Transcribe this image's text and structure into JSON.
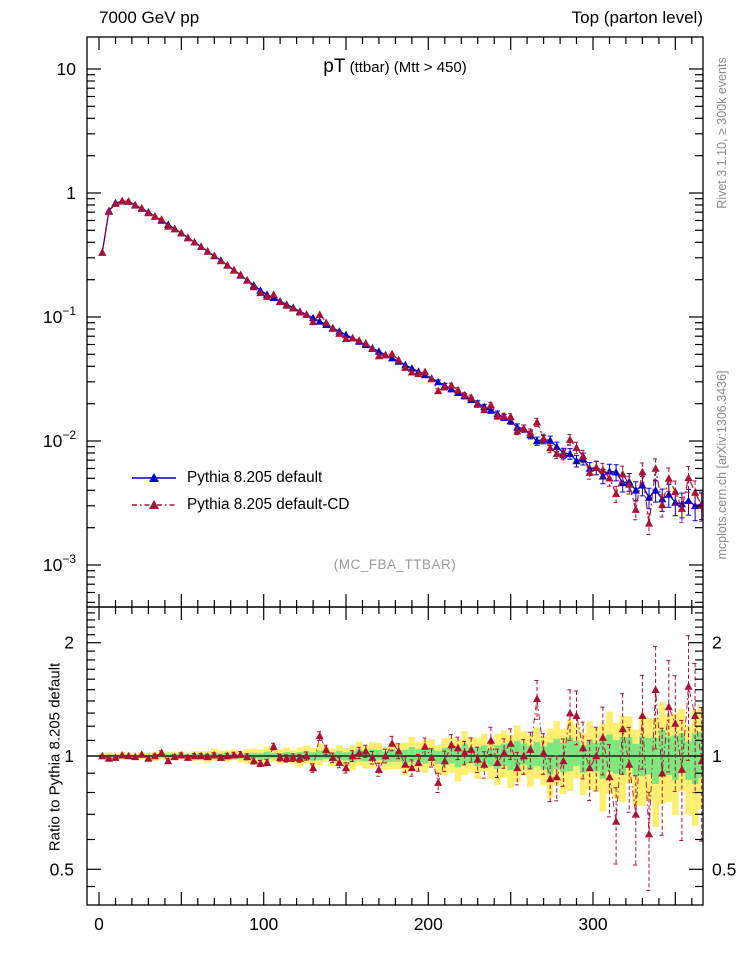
{
  "header": {
    "left": "7000 GeV pp",
    "right": "Top (parton level)"
  },
  "side_notes": {
    "top": "Rivet 3.1.10, ≥ 300k events",
    "bottom": "mcplots.cern.ch [arXiv:1306.3436]"
  },
  "watermark": "(MC_FBA_TTBAR)",
  "legend": {
    "items": [
      {
        "label": "Pythia 8.205 default",
        "color": "#0000cc",
        "style": "solid"
      },
      {
        "label": "Pythia 8.205 default-CD",
        "color": "#aa1133",
        "style": "dashdot"
      }
    ]
  },
  "chart_data": {
    "type": "line",
    "title": "pT (ttbar) (Mtt > 450)",
    "title_big": "pT",
    "title_rest": " (ttbar) (Mtt > 450)",
    "ratio_ylabel": "Ratio to Pythia 8.205 default",
    "x_axis": {
      "lim": [
        -7,
        367
      ],
      "major_step": 50,
      "minor_step": 10,
      "labeled_ticks": [
        0,
        100,
        200,
        300
      ]
    },
    "main_y_axis": {
      "scale": "log",
      "lim": [
        0.00046,
        18.1
      ],
      "labeled_ticks": [
        {
          "v": 10,
          "mantissa": "10",
          "exp": ""
        },
        {
          "v": 1,
          "mantissa": "1",
          "exp": ""
        },
        {
          "v": 0.1,
          "mantissa": "10",
          "exp": "-1"
        },
        {
          "v": 0.01,
          "mantissa": "10",
          "exp": "-2"
        },
        {
          "v": 0.001,
          "mantissa": "10",
          "exp": "-3"
        }
      ]
    },
    "ratio_y_axis": {
      "scale": "log",
      "lim": [
        0.4,
        2.49
      ],
      "labeled_ticks": [
        2,
        1,
        0.5
      ]
    },
    "x_start": 2,
    "x_step": 4,
    "series": [
      {
        "name": "Pythia 8.205 default",
        "color": "#0000cc",
        "style": "solid",
        "marker": "triangle",
        "values": [
          0.331,
          0.719,
          0.83,
          0.859,
          0.855,
          0.8,
          0.748,
          0.7,
          0.647,
          0.6,
          0.555,
          0.514,
          0.475,
          0.437,
          0.401,
          0.369,
          0.339,
          0.311,
          0.286,
          0.261,
          0.238,
          0.217,
          0.198,
          0.18,
          0.164,
          0.152,
          0.143,
          0.134,
          0.126,
          0.119,
          0.111,
          0.105,
          0.0983,
          0.0923,
          0.0867,
          0.0815,
          0.0766,
          0.0719,
          0.0676,
          0.0635,
          0.0597,
          0.0561,
          0.0527,
          0.0495,
          0.0466,
          0.0438,
          0.0411,
          0.0386,
          0.0363,
          0.0341,
          0.032,
          0.0299,
          0.028,
          0.0262,
          0.0245,
          0.023,
          0.0215,
          0.0201,
          0.0188,
          0.0177,
          0.0165,
          0.0155,
          0.0145,
          0.0129,
          0.0126,
          0.0112,
          0.01,
          0.0103,
          0.0101,
          0.009,
          0.008,
          0.0079,
          0.0069,
          0.0072,
          0.006,
          0.0061,
          0.0052,
          0.0057,
          0.0056,
          0.0046,
          0.0047,
          0.004,
          0.0044,
          0.0035,
          0.004,
          0.0034,
          0.0037,
          0.0032,
          0.0031,
          0.0033,
          0.003,
          0.0031
        ]
      },
      {
        "name": "Pythia 8.205 default-CD",
        "color": "#aa1133",
        "style": "dashdot",
        "marker": "triangle",
        "ratio_to_first": [
          1.0,
          0.985,
          0.99,
          1.005,
          1.0,
          0.995,
          1.01,
          0.985,
          1.0,
          1.02,
          0.97,
          0.995,
          1.005,
          0.99,
          1.0,
          1.0,
          0.995,
          1.005,
          0.99,
          1.0,
          1.005,
          1.01,
          0.995,
          0.97,
          0.955,
          0.96,
          1.06,
          0.99,
          0.985,
          0.99,
          0.985,
          1.0,
          0.93,
          1.13,
          1.04,
          0.99,
          0.96,
          0.93,
          1.0,
          1.02,
          1.03,
          0.99,
          0.92,
          1.0,
          1.08,
          1.03,
          0.95,
          0.93,
          0.96,
          1.06,
          0.99,
          0.85,
          0.97,
          1.07,
          1.05,
          1.02,
          1.04,
          0.98,
          0.95,
          1.1,
          0.96,
          1.02,
          1.08,
          0.93,
          1.0,
          1.04,
          1.42,
          1.02,
          0.87,
          0.88,
          0.97,
          1.3,
          1.28,
          1.05,
          0.93,
          1.0,
          1.12,
          0.88,
          0.67,
          1.18,
          0.95,
          0.7,
          1.28,
          0.62,
          1.5,
          0.9,
          1.35,
          1.22,
          0.92,
          1.53,
          1.28,
          0.97
        ]
      }
    ],
    "stat_err_frac": {
      "x": [
        0,
        100,
        150,
        200,
        250,
        280,
        300,
        320,
        340,
        366
      ],
      "v": [
        0.006,
        0.012,
        0.02,
        0.035,
        0.06,
        0.09,
        0.12,
        0.16,
        0.2,
        0.25
      ]
    },
    "ratio_bands": {
      "x": [
        0,
        50,
        100,
        150,
        200,
        240,
        270,
        300,
        330,
        368
      ],
      "green": [
        0.008,
        0.012,
        0.02,
        0.03,
        0.045,
        0.065,
        0.085,
        0.1,
        0.12,
        0.15
      ],
      "yellow": [
        0.018,
        0.027,
        0.045,
        0.065,
        0.1,
        0.14,
        0.18,
        0.22,
        0.27,
        0.33
      ],
      "green_color": "#7de77f",
      "yellow_color": "#feef70"
    }
  }
}
